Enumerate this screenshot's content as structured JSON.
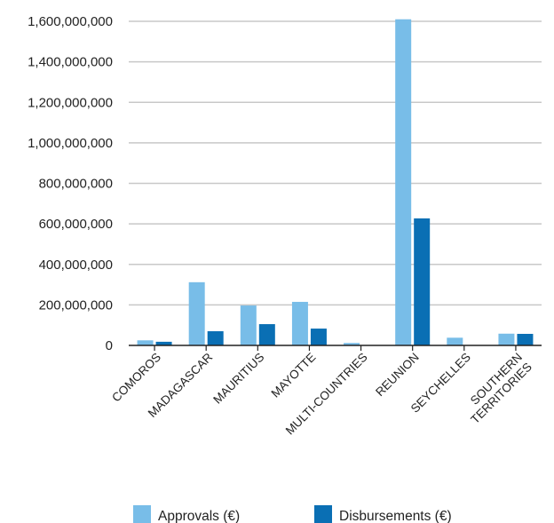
{
  "chart_data": {
    "type": "bar",
    "categories": [
      "COMOROS",
      "MADAGASCAR",
      "MAURITIUS",
      "MAYOTTE",
      "MULTI-COUNTRIES",
      "REUNION",
      "SEYCHELLES",
      "SOUTHERN TERRITORIES"
    ],
    "series": [
      {
        "name": "Approvals (€)",
        "color": "#78bde8",
        "values": [
          25000000,
          312000000,
          197000000,
          215000000,
          12000000,
          1610000000,
          38000000,
          58000000
        ]
      },
      {
        "name": "Disbursements (€)",
        "color": "#0a6fb4",
        "values": [
          18000000,
          70000000,
          105000000,
          83000000,
          0,
          627000000,
          0,
          57000000
        ]
      }
    ],
    "yticks": [
      "0",
      "200,000,000",
      "400,000,000",
      "600,000,000",
      "800,000,000",
      "1,000,000,000",
      "1,200,000,000",
      "1,400,000,000",
      "1,600,000,000"
    ],
    "ylim": [
      0,
      1600000000
    ],
    "xlabel": "",
    "ylabel": "",
    "title": "",
    "grid": true,
    "legend_position": "bottom"
  }
}
